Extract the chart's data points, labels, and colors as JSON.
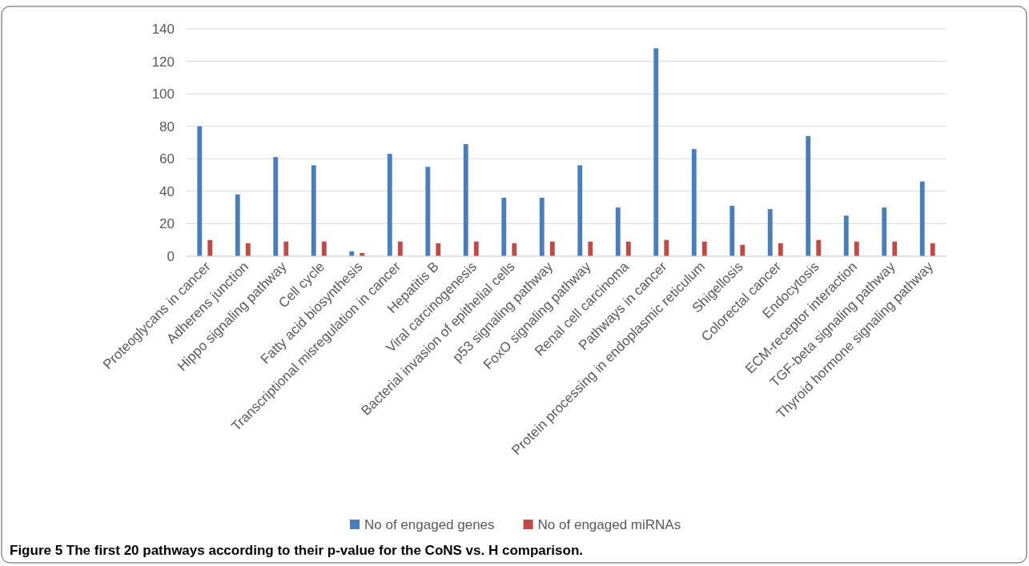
{
  "chart_data": {
    "type": "bar",
    "title": "Figure 5  The first 20 pathways according to their p-value for the CoNS vs. H comparison.",
    "categories": [
      "Proteoglycans in cancer",
      "Adherens junction",
      "Hippo signaling pathway",
      "Cell cycle",
      "Fatty acid biosynthesis",
      "Transcriptional misregulation in cancer",
      "Hepatitis B",
      "Viral carcinogenesis",
      "Bacterial invasion of epithelial cells",
      "p53 signaling pathway",
      "FoxO signaling pathway",
      "Renal cell carcinoma",
      "Pathways in cancer",
      "Protein processing in endoplasmic reticulum",
      "Shigellosis",
      "Colorectal cancer",
      "Endocytosis",
      "ECM-receptor interaction",
      "TGF-beta signaling pathway",
      "Thyroid hormone signaling pathway"
    ],
    "series": [
      {
        "name": "No of engaged genes",
        "color": "#4a7ebb",
        "values": [
          80,
          38,
          61,
          56,
          3,
          63,
          55,
          69,
          36,
          36,
          56,
          30,
          128,
          66,
          31,
          29,
          74,
          25,
          30,
          46
        ]
      },
      {
        "name": "No of engaged miRNAs",
        "color": "#be4b48",
        "values": [
          10,
          8,
          9,
          9,
          2,
          9,
          8,
          9,
          8,
          9,
          9,
          9,
          10,
          9,
          7,
          8,
          10,
          9,
          9,
          8
        ]
      }
    ],
    "ylim": [
      0,
      140
    ],
    "yticks": [
      0,
      20,
      40,
      60,
      80,
      100,
      120,
      140
    ],
    "grid": "y",
    "legend": "bottom"
  }
}
